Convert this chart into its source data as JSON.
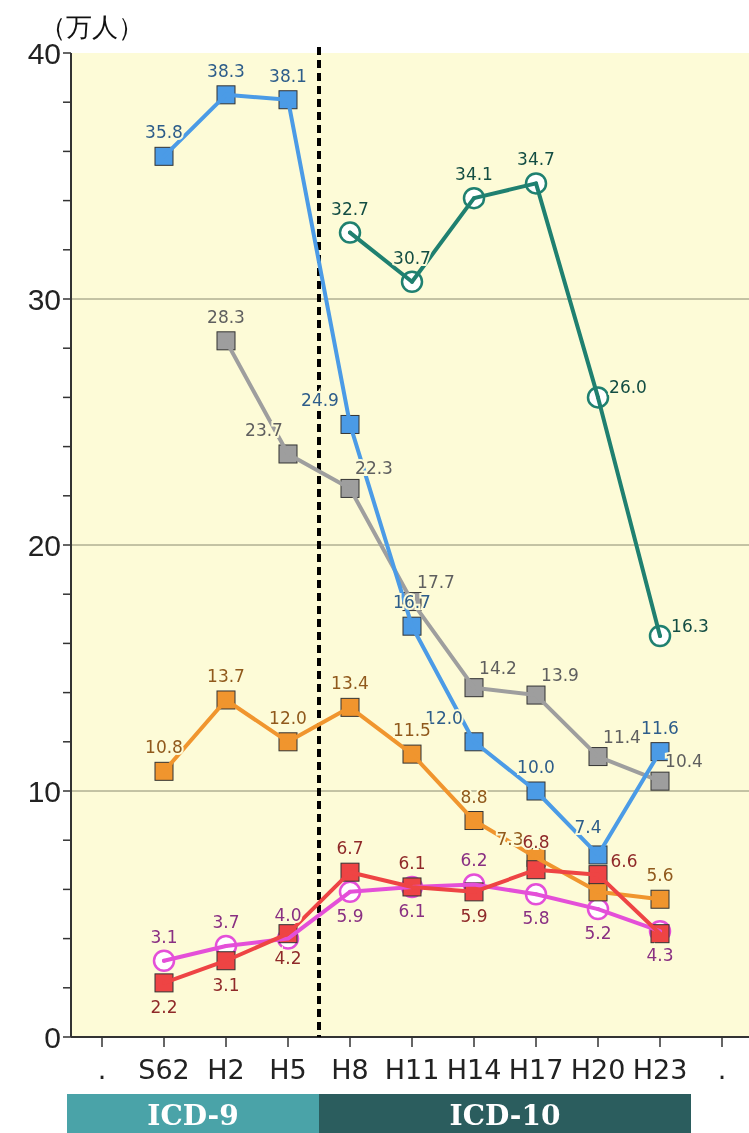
{
  "chart_data": {
    "type": "line",
    "ylabel": "（万人）",
    "categories": [
      ".",
      "S62",
      "H2",
      "H5",
      "H8",
      "H11",
      "H14",
      "H17",
      "H20",
      "H23",
      "."
    ],
    "ylim": [
      0,
      40
    ],
    "yticks": [
      0,
      {
        "value": 2,
        "label": null
      },
      {
        "value": 4,
        "label": null
      },
      {
        "value": 6,
        "label": null
      },
      {
        "value": 8,
        "label": null
      },
      10,
      {
        "value": 12,
        "label": null
      },
      {
        "value": 14,
        "label": null
      },
      {
        "value": 16,
        "label": null
      },
      {
        "value": 18,
        "label": null
      },
      20,
      {
        "value": 22,
        "label": null
      },
      {
        "value": 24,
        "label": null
      },
      {
        "value": 26,
        "label": null
      },
      {
        "value": 28,
        "label": null
      },
      30,
      {
        "value": 32,
        "label": null
      },
      {
        "value": 34,
        "label": null
      },
      {
        "value": 36,
        "label": null
      },
      {
        "value": 38,
        "label": null
      },
      40
    ],
    "grid": "y",
    "line_style": "solid",
    "series": [
      {
        "color": "#1f8070",
        "marker": "circle",
        "values": [
          null,
          null,
          null,
          null,
          32.7,
          30.7,
          34.1,
          34.7,
          26.0,
          16.3,
          null
        ],
        "value_labels": [
          null,
          null,
          null,
          null,
          "32.7",
          "30.7",
          "34.1",
          "34.7",
          "26.0",
          "16.3",
          null
        ]
      },
      {
        "color": "#e44fd8",
        "marker": "circle",
        "values": [
          null,
          3.1,
          3.7,
          4.0,
          5.9,
          6.1,
          6.2,
          5.8,
          5.2,
          4.3,
          null
        ],
        "value_labels": [
          null,
          "3.1",
          "3.7",
          "4.0",
          "5.9",
          "6.1",
          "6.2",
          "5.8",
          "5.2",
          "4.3",
          null
        ]
      },
      {
        "color": "#9e9e9e",
        "marker": "square",
        "values": [
          null,
          null,
          28.3,
          23.7,
          22.3,
          17.7,
          14.2,
          13.9,
          11.4,
          10.4,
          null
        ],
        "value_labels": [
          null,
          null,
          "28.3",
          "23.7",
          "22.3",
          "17.7",
          "14.2",
          "13.9",
          "11.4",
          "10.4",
          null
        ]
      },
      {
        "color": "#4b9be6",
        "marker": "square",
        "values": [
          null,
          35.8,
          38.3,
          38.1,
          24.9,
          16.7,
          12.0,
          10.0,
          7.4,
          11.6,
          null
        ],
        "value_labels": [
          null,
          "35.8",
          "38.3",
          "38.1",
          "24.9",
          "16.7",
          "12.0",
          "10.0",
          "7.4",
          "11.6",
          null
        ]
      },
      {
        "color": "#f0952e",
        "marker": "square",
        "values": [
          null,
          10.8,
          13.7,
          12.0,
          13.4,
          11.5,
          8.8,
          7.3,
          5.9,
          5.6,
          null
        ],
        "value_labels": [
          null,
          "10.8",
          "13.7",
          "12.0",
          "13.4",
          "11.5",
          "8.8",
          "7.3",
          null,
          "5.6",
          null
        ]
      },
      {
        "color": "#ee4444",
        "marker": "square",
        "values": [
          null,
          2.2,
          3.1,
          4.2,
          6.7,
          6.1,
          5.9,
          6.8,
          6.6,
          4.2,
          null
        ],
        "value_labels": [
          null,
          "2.2",
          "3.1",
          "4.2",
          "6.7",
          "6.1",
          "5.9",
          "6.8",
          "6.6",
          null,
          null
        ]
      }
    ],
    "annotations": [
      "ICD-9",
      "ICD-10"
    ]
  }
}
